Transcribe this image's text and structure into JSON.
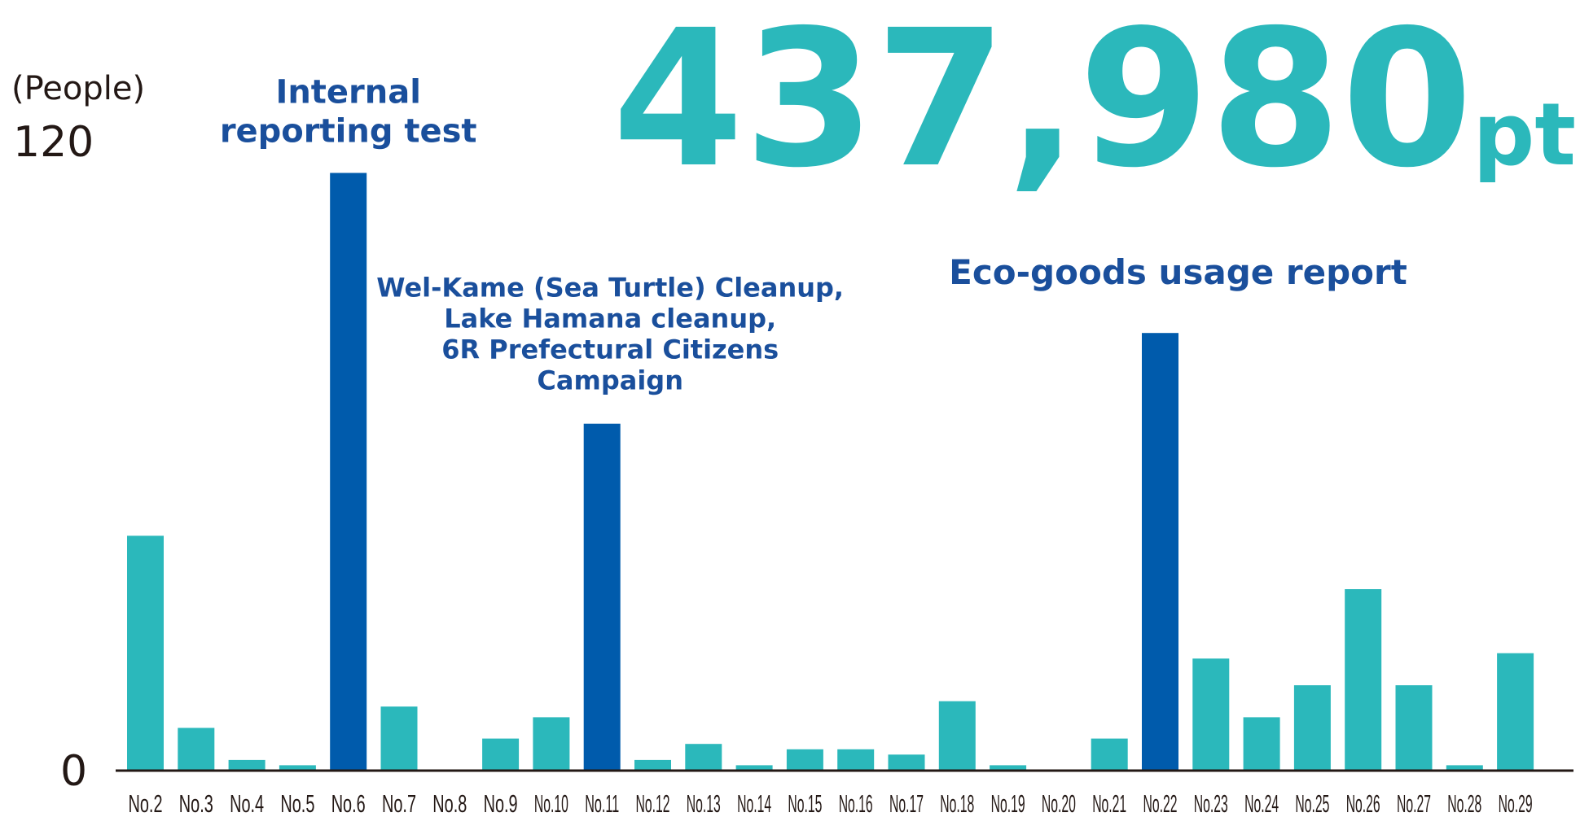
{
  "total": {
    "value": "437,980",
    "unit": "pt"
  },
  "colors": {
    "normal": "#2bb8bb",
    "highlight": "#005bac",
    "annotation": "#1a4f9c",
    "text": "#231815",
    "axis": "#231815"
  },
  "chart_data": {
    "type": "bar",
    "ylabel": "(People)",
    "ylim": [
      0,
      120
    ],
    "yticks": [
      "0",
      "120"
    ],
    "grid": false,
    "categories": [
      "No.2",
      "No.3",
      "No.4",
      "No.5",
      "No.6",
      "No.7",
      "No.8",
      "No.9",
      "No.10",
      "No.11",
      "No.12",
      "No.13",
      "No.14",
      "No.15",
      "No.16",
      "No.17",
      "No.18",
      "No.19",
      "No.20",
      "No.21",
      "No.22",
      "No.23",
      "No.24",
      "No.25",
      "No.26",
      "No.27",
      "No.28",
      "No.29"
    ],
    "values": [
      44,
      8,
      2,
      1,
      112,
      12,
      0,
      6,
      10,
      65,
      2,
      5,
      1,
      4,
      4,
      3,
      13,
      1,
      0,
      6,
      82,
      21,
      10,
      16,
      34,
      16,
      1,
      22
    ],
    "highlighted": [
      "No.6",
      "No.11",
      "No.22"
    ],
    "annotations": [
      {
        "category": "No.6",
        "lines": [
          "Internal",
          "reporting test"
        ]
      },
      {
        "category": "No.11",
        "lines": [
          "Wel-Kame (Sea Turtle) Cleanup,",
          "Lake Hamana cleanup,",
          "6R Prefectural Citizens",
          "Campaign"
        ]
      },
      {
        "category": "No.22",
        "lines": [
          "Eco-goods usage report"
        ]
      }
    ]
  }
}
